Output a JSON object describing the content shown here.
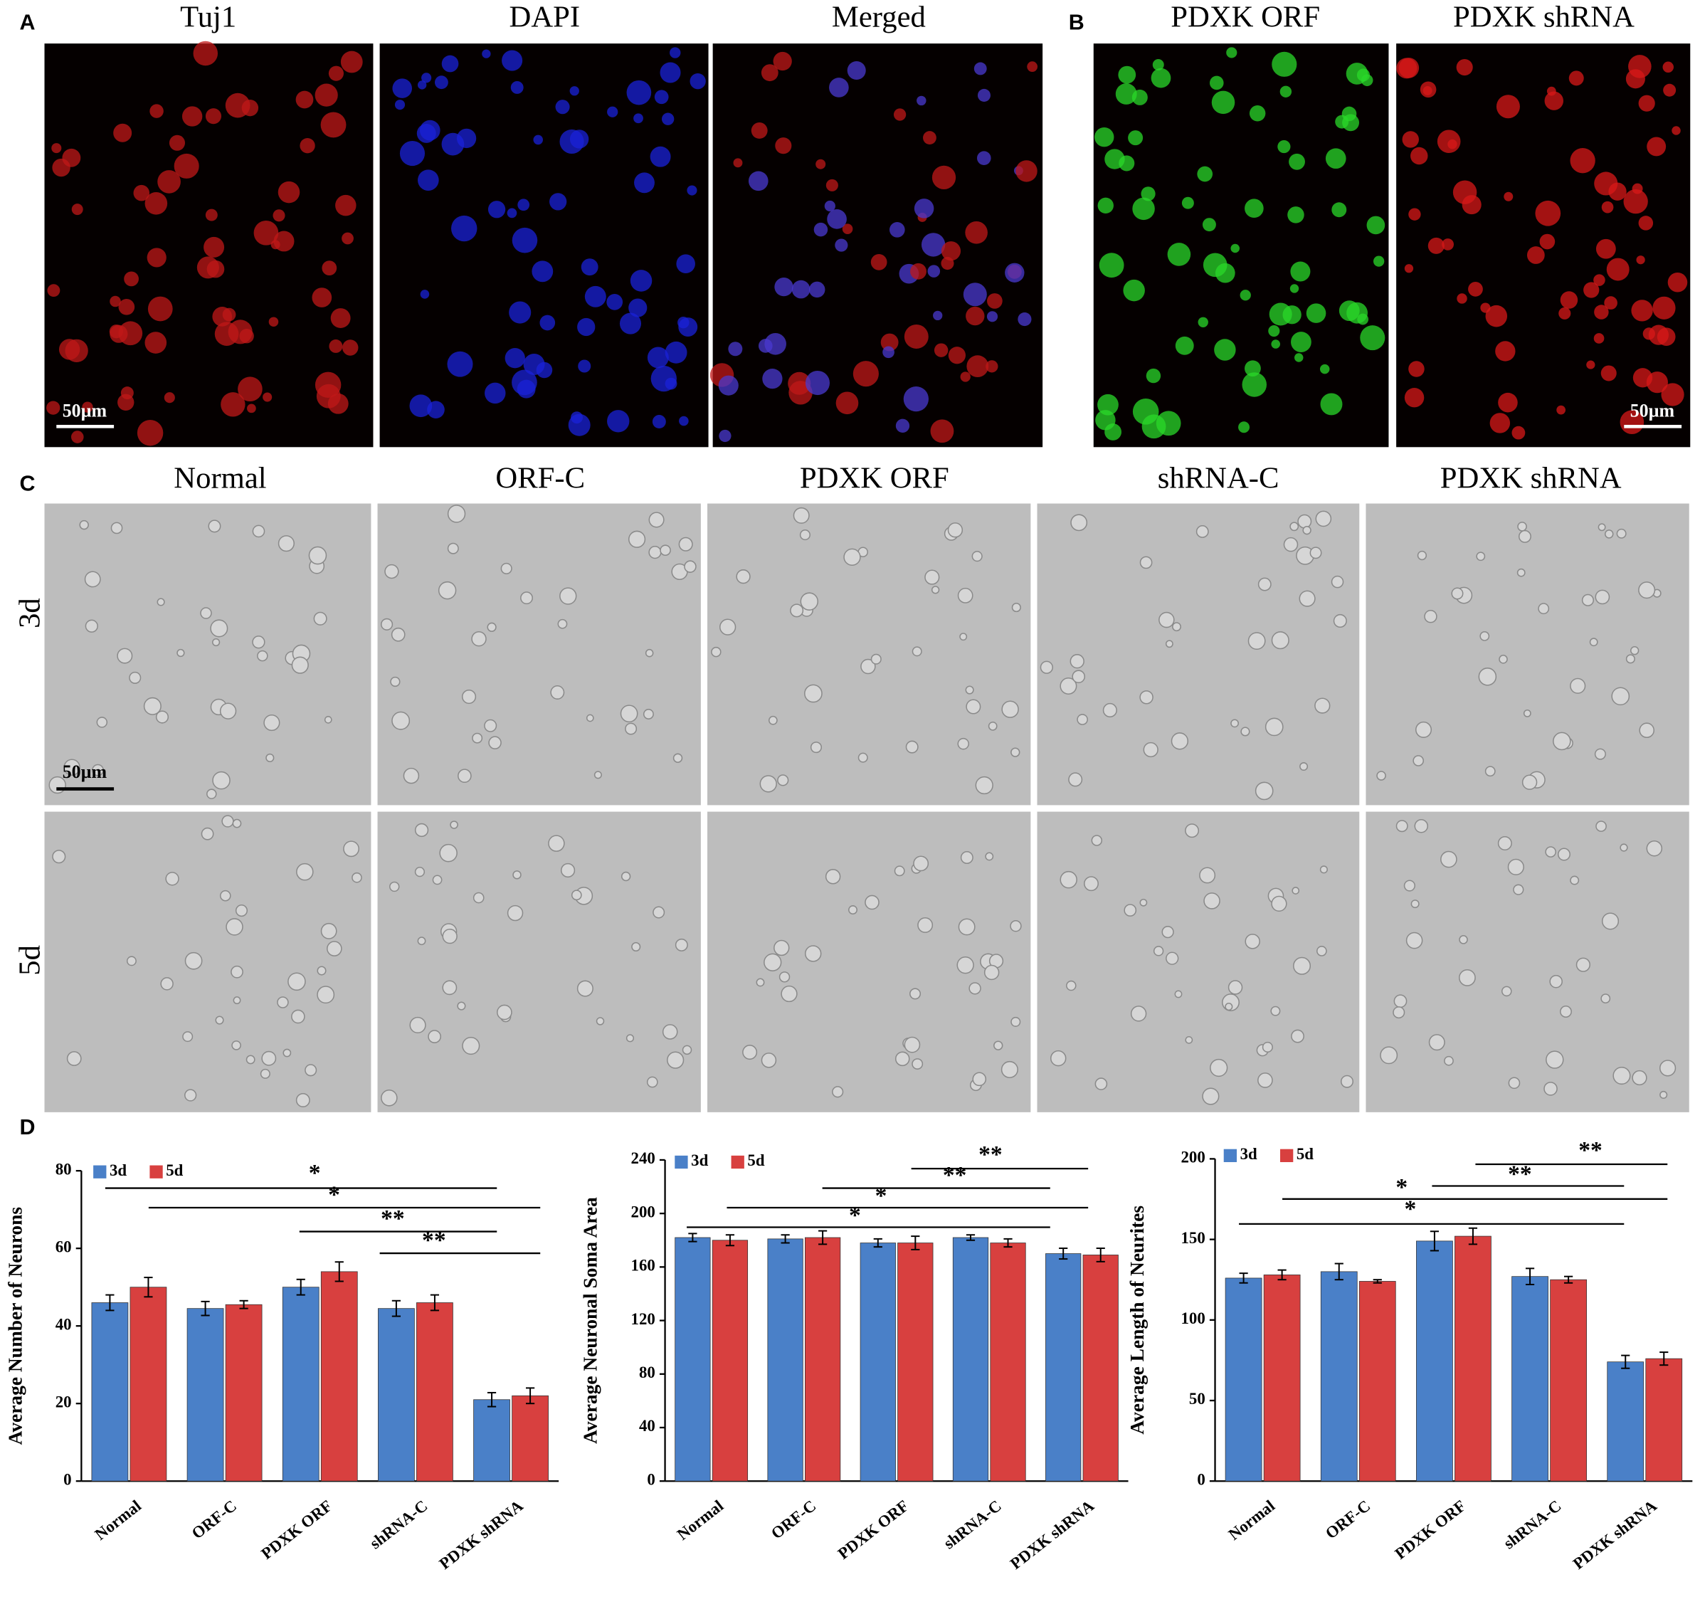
{
  "figure": {
    "panel_labels": [
      "A",
      "B",
      "C",
      "D"
    ],
    "panel_a_titles": [
      "Tuj1",
      "DAPI",
      "Merged"
    ],
    "panel_b_titles": [
      "PDXK ORF",
      "PDXK shRNA"
    ],
    "panel_c_columns": [
      "Normal",
      "ORF-C",
      "PDXK ORF",
      "shRNA-C",
      "PDXK shRNA"
    ],
    "panel_c_rows": [
      "3d",
      "5d"
    ],
    "scale_bar": "50µm"
  },
  "chart_data": [
    {
      "type": "bar",
      "ylabel": "Average Number of Neurons",
      "categories": [
        "Normal",
        "ORF-C",
        "PDXK ORF",
        "shRNA-C",
        "PDXK shRNA"
      ],
      "series": [
        {
          "name": "3d",
          "color": "#4a80c8",
          "values": [
            46,
            44.5,
            50,
            44.5,
            21
          ],
          "errors": [
            2,
            1.8,
            2,
            2,
            1.8
          ]
        },
        {
          "name": "5d",
          "color": "#d8403f",
          "values": [
            50,
            45.5,
            54,
            46,
            22
          ],
          "errors": [
            2.5,
            1,
            2.5,
            2,
            2
          ]
        }
      ],
      "ylim": [
        0,
        80
      ],
      "yticks": [
        0,
        20,
        40,
        60,
        80
      ],
      "annotations": [
        "*",
        "*",
        "**",
        "**"
      ]
    },
    {
      "type": "bar",
      "ylabel": "Average Neuronal Soma Area",
      "categories": [
        "Normal",
        "ORF-C",
        "PDXK ORF",
        "shRNA-C",
        "PDXK shRNA"
      ],
      "series": [
        {
          "name": "3d",
          "color": "#4a80c8",
          "values": [
            182,
            181,
            178,
            182,
            170
          ],
          "errors": [
            3,
            3,
            3,
            2,
            4
          ]
        },
        {
          "name": "5d",
          "color": "#d8403f",
          "values": [
            180,
            182,
            178,
            178,
            169
          ],
          "errors": [
            4,
            5,
            5,
            3,
            5
          ]
        }
      ],
      "ylim": [
        0,
        240
      ],
      "yticks": [
        0,
        40,
        80,
        120,
        160,
        200,
        240
      ],
      "annotations": [
        "**",
        "**",
        "*",
        "*"
      ]
    },
    {
      "type": "bar",
      "ylabel": "Average Length of Neurites",
      "categories": [
        "Normal",
        "ORF-C",
        "PDXK ORF",
        "shRNA-C",
        "PDXK shRNA"
      ],
      "series": [
        {
          "name": "3d",
          "color": "#4a80c8",
          "values": [
            126,
            130,
            149,
            127,
            74
          ],
          "errors": [
            3,
            5,
            6,
            5,
            4
          ]
        },
        {
          "name": "5d",
          "color": "#d8403f",
          "values": [
            128,
            124,
            152,
            125,
            76
          ],
          "errors": [
            3,
            1,
            5,
            2,
            4
          ]
        }
      ],
      "ylim": [
        0,
        200
      ],
      "yticks": [
        0,
        50,
        100,
        150,
        200
      ],
      "annotations": [
        "**",
        "**",
        "*",
        "*"
      ]
    }
  ]
}
